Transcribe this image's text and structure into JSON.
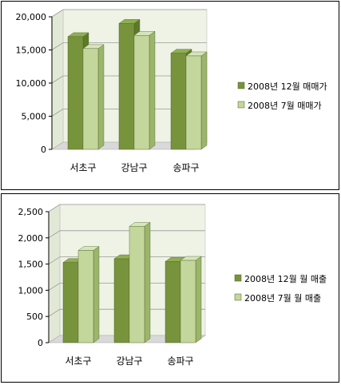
{
  "colors": {
    "series1_front": "#77933C",
    "series1_side": "#5C7A2A",
    "series1_top": "#8FAE52",
    "series2_front": "#C3D69B",
    "series2_side": "#9BB56A",
    "series2_top": "#D7E4BD",
    "wall": "#EEF3E6",
    "floor": "#D9D9D9",
    "grid": "#9A9A9A"
  },
  "chart_data": [
    {
      "type": "bar",
      "categories": [
        "서초구",
        "강남구",
        "송파구"
      ],
      "series": [
        {
          "name": "2008년 12월 매매가",
          "values": [
            17000,
            19000,
            14500
          ]
        },
        {
          "name": "2008년 7월 매매가",
          "values": [
            15200,
            17200,
            14100
          ]
        }
      ],
      "ylim": [
        0,
        20000
      ],
      "yticks": [
        "0",
        "5,000",
        "10,000",
        "15,000",
        "20,000"
      ],
      "ytick_values": [
        0,
        5000,
        10000,
        15000,
        20000
      ],
      "grid": true,
      "legend": "right",
      "style": "3d"
    },
    {
      "type": "bar",
      "categories": [
        "서초구",
        "강남구",
        "송파구"
      ],
      "series": [
        {
          "name": "2008년 12월 월 매출",
          "values": [
            1530,
            1600,
            1550
          ]
        },
        {
          "name": "2008년 7월 월 매출",
          "values": [
            1760,
            2220,
            1570
          ]
        }
      ],
      "ylim": [
        0,
        2500
      ],
      "yticks": [
        "0",
        "500",
        "1,000",
        "1,500",
        "2,000",
        "2,500"
      ],
      "ytick_values": [
        0,
        500,
        1000,
        1500,
        2000,
        2500
      ],
      "grid": true,
      "legend": "right",
      "style": "3d"
    }
  ]
}
